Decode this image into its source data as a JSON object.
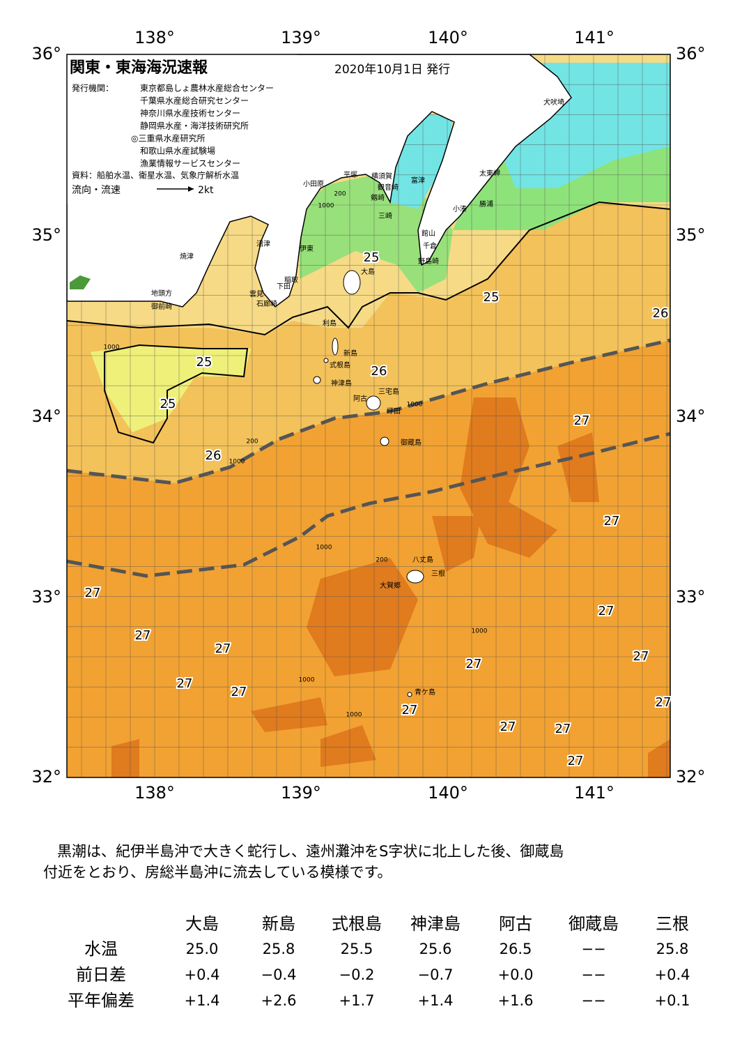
{
  "map": {
    "title": "関東・東海海況速報",
    "date": "2020年10月1日 発行",
    "issuer_label": "発行機関：",
    "issuers": [
      "東京都島しょ農林水産総合センター",
      "千葉県水産総合研究センター",
      "神奈川県水産技術センター",
      "静岡県水産・海洋技術研究所",
      "◎三重県水産研究所",
      "和歌山県水産試験場",
      "漁業情報サービスセンター"
    ],
    "source": "資料：船舶水温、衛星水温、気象庁解析水温",
    "legend_label": "流向・流速",
    "legend_speed": "2kt",
    "lon_labels": [
      "138°",
      "139°",
      "140°",
      "141°"
    ],
    "lat_labels": [
      "36°",
      "35°",
      "34°",
      "33°",
      "32°"
    ],
    "places": [
      "焼津",
      "沼津",
      "伊東",
      "稲取",
      "下田",
      "雲見",
      "石廊崎",
      "地頭方",
      "御前崎",
      "小田原",
      "平塚",
      "横須賀",
      "観音崎",
      "富津",
      "剱崎",
      "三崎",
      "館山",
      "千倉",
      "野島崎",
      "太東岬",
      "小湊",
      "勝浦",
      "犬吠埼",
      "大島",
      "利島",
      "新島",
      "式根島",
      "神津島",
      "三宅島",
      "阿古",
      "坪田",
      "御蔵島",
      "八丈島",
      "三根",
      "大賀郷",
      "青ケ島"
    ],
    "depth_labels": [
      "200",
      "1000",
      "1000",
      "200",
      "1000",
      "1000",
      "200",
      "1000",
      "1000",
      "1000",
      "1000"
    ],
    "temperature_labels": [
      "25",
      "25",
      "25",
      "25",
      "26",
      "26",
      "26",
      "27",
      "27",
      "27",
      "27",
      "27",
      "27",
      "27",
      "27",
      "27",
      "27",
      "27",
      "27",
      "27",
      "27",
      "27"
    ]
  },
  "description": [
    "黒潮は、紀伊半島沖で大きく蛇行し、遠州灘沖をS字状に北上した後、御蔵島",
    "付近をとおり、房総半島沖に流去している模様です。"
  ],
  "table": {
    "columns": [
      "大島",
      "新島",
      "式根島",
      "神津島",
      "阿古",
      "御蔵島",
      "三根"
    ],
    "rows": [
      {
        "label": "水温",
        "values": [
          "25.0",
          "25.8",
          "25.5",
          "25.6",
          "26.5",
          "−−",
          "25.8"
        ]
      },
      {
        "label": "前日差",
        "values": [
          "+0.4",
          "−0.4",
          "−0.2",
          "−0.7",
          "+0.0",
          "−−",
          "+0.4"
        ]
      },
      {
        "label": "平年偏差",
        "values": [
          "+1.4",
          "+2.6",
          "+1.7",
          "+1.4",
          "+1.6",
          "−−",
          "+0.1"
        ]
      }
    ]
  }
}
